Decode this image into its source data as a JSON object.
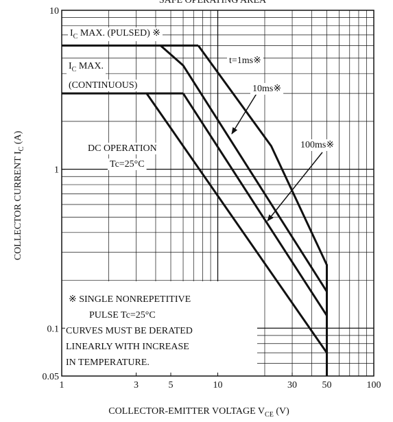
{
  "chart_data": {
    "type": "line",
    "title": "SAFE OPERATING AREA",
    "xlabel": [
      "COLLECTOR-EMITTER VOLTAGE  V",
      "CE",
      "  (V)"
    ],
    "ylabel": [
      "COLLECTOR CURRENT  I",
      "C",
      "  (A)"
    ],
    "log_x": true,
    "log_y": true,
    "grid": true,
    "xlim": [
      1,
      100
    ],
    "ylim": [
      0.05,
      10
    ],
    "xticks": [
      1,
      3,
      5,
      10,
      30,
      50,
      100
    ],
    "yticks": [
      0.05,
      0.1,
      1,
      10
    ],
    "xgrid": [
      2,
      3,
      4,
      5,
      6,
      7,
      8,
      9,
      10,
      20,
      30,
      40,
      50,
      60,
      70,
      80,
      90
    ],
    "ygrid": [
      0.06,
      0.07,
      0.08,
      0.09,
      0.1,
      0.2,
      0.3,
      0.4,
      0.5,
      0.6,
      0.7,
      0.8,
      0.9,
      1,
      2,
      3,
      4,
      5,
      6,
      7,
      8,
      9
    ],
    "color": "#111111",
    "series": [
      {
        "x": [
          1,
          7.5
        ],
        "values": [
          6,
          6
        ]
      },
      {
        "x": [
          1,
          6
        ],
        "values": [
          3,
          3
        ]
      },
      {
        "x": [
          7.5,
          22,
          50,
          50
        ],
        "values": [
          6,
          1.4,
          0.25,
          0.05
        ]
      },
      {
        "x": [
          4.3,
          6,
          50,
          50
        ],
        "values": [
          6,
          4.5,
          0.17,
          0.05
        ]
      },
      {
        "x": [
          6,
          50,
          50
        ],
        "values": [
          3,
          0.12,
          0.05
        ]
      },
      {
        "x": [
          3.5,
          50,
          50
        ],
        "values": [
          3,
          0.07,
          0.05
        ]
      }
    ],
    "annotations": [
      [
        "I",
        "C",
        " MAX. (PULSED) ※"
      ],
      [
        "I",
        "C",
        " MAX."
      ],
      [
        "(CONTINUOUS)"
      ],
      [
        "t=1ms※"
      ],
      [
        "10ms※"
      ],
      [
        "100ms※"
      ],
      [
        "DC OPERATION"
      ],
      [
        "Tc=25°C"
      ]
    ],
    "notes": [
      "※  SINGLE NONREPETITIVE",
      "PULSE   Tc=25°C",
      "CURVES MUST BE DERATED",
      "LINEARLY WITH INCREASE",
      "IN TEMPERATURE."
    ]
  }
}
